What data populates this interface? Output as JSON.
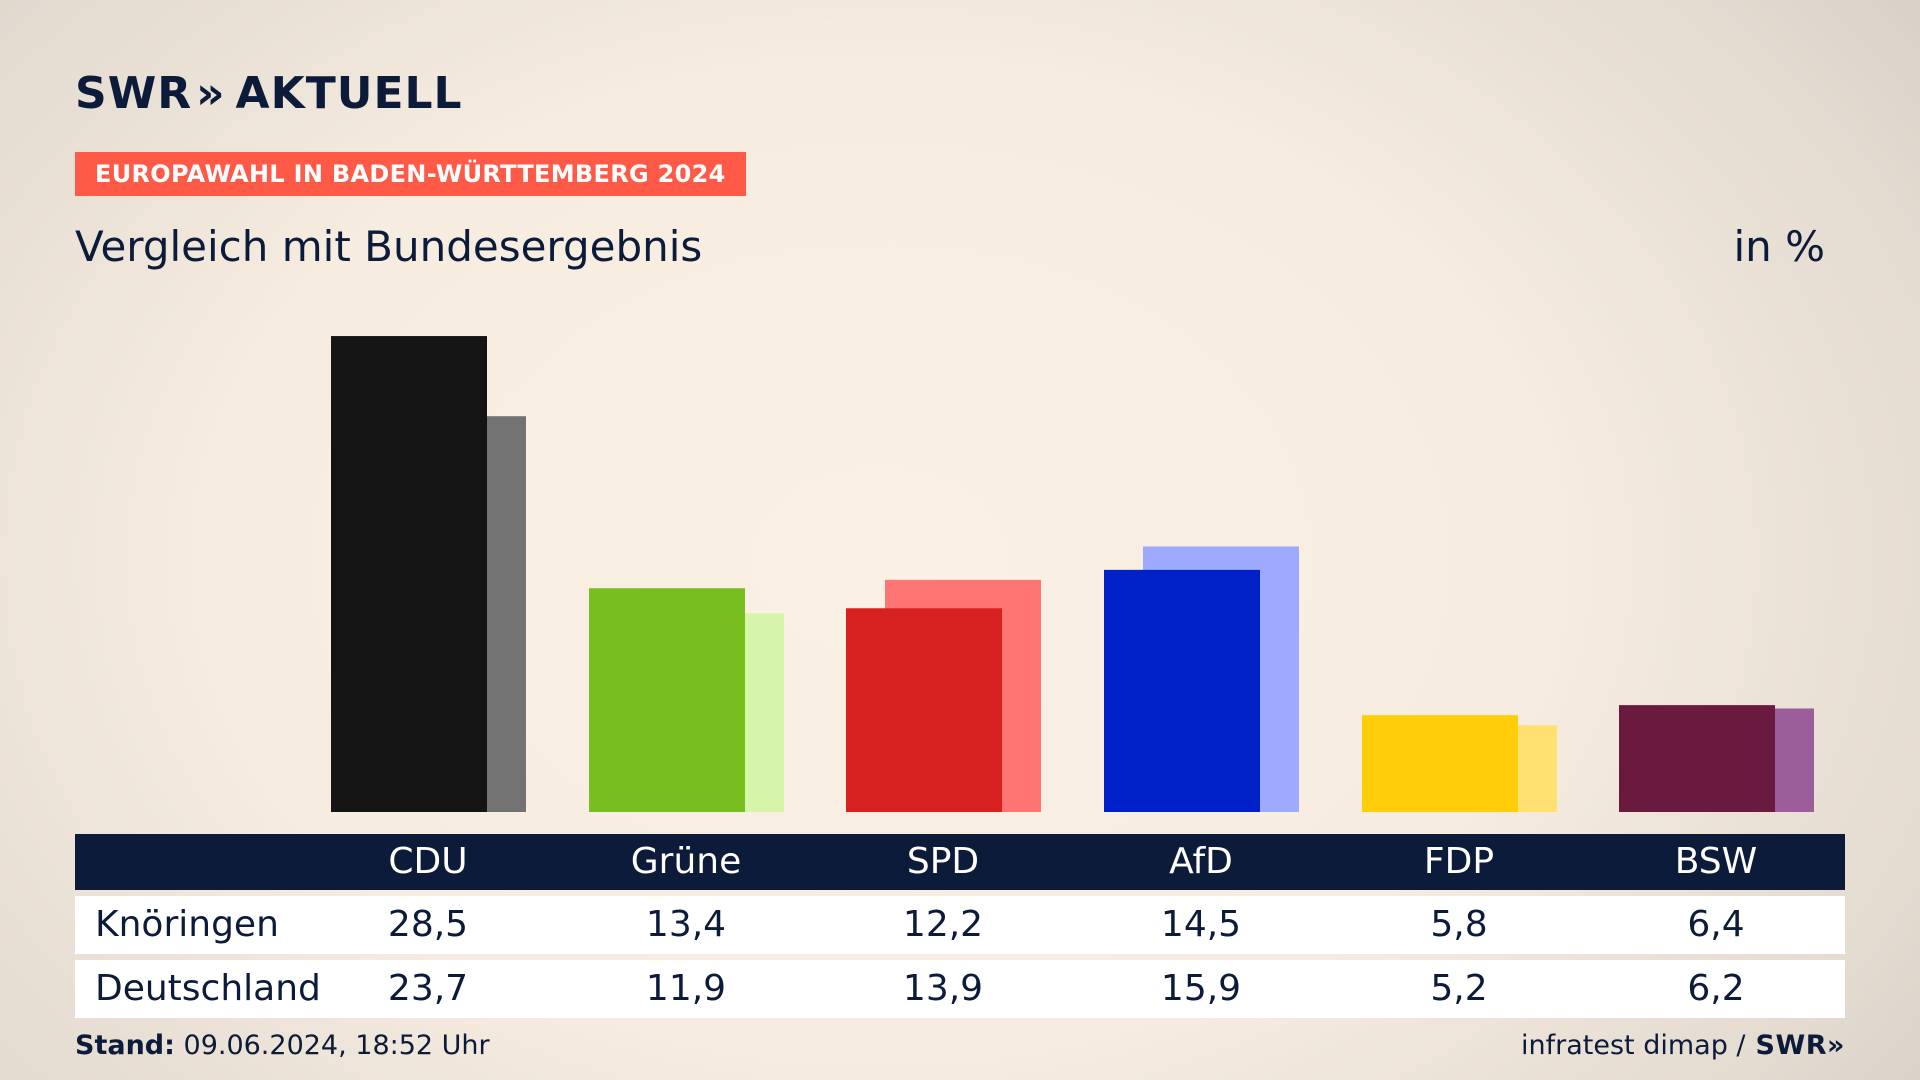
{
  "header": {
    "brand_part1": "SWR",
    "brand_chevron": "»",
    "brand_part2": "AKTUELL",
    "tag": "EUROPAWAHL IN BADEN-WÜRTTEMBERG 2024",
    "subtitle": "Vergleich mit Bundesergebnis",
    "unit": "in %"
  },
  "chart_data": {
    "type": "bar",
    "categories": [
      "CDU",
      "Grüne",
      "SPD",
      "AfD",
      "FDP",
      "BSW"
    ],
    "series": [
      {
        "name": "Knöringen",
        "values": [
          28.5,
          13.4,
          12.2,
          14.5,
          5.8,
          6.4
        ]
      },
      {
        "name": "Deutschland",
        "values": [
          23.7,
          11.9,
          13.9,
          15.9,
          5.2,
          6.2
        ]
      }
    ],
    "colors": {
      "primary": [
        "#141414",
        "#78be1e",
        "#d72020",
        "#0021c8",
        "#ffcd0a",
        "#6a1a3f"
      ],
      "secondary": [
        "#737373",
        "#d7f5aa",
        "#ff7573",
        "#9eaaff",
        "#ffe172",
        "#9b5e9a"
      ]
    },
    "ylim": [
      0,
      30
    ]
  },
  "table": {
    "headers": [
      "CDU",
      "Grüne",
      "SPD",
      "AfD",
      "FDP",
      "BSW"
    ],
    "rows": [
      {
        "label": "Knöringen",
        "values": [
          "28,5",
          "13,4",
          "12,2",
          "14,5",
          "5,8",
          "6,4"
        ]
      },
      {
        "label": "Deutschland",
        "values": [
          "23,7",
          "11,9",
          "13,9",
          "15,9",
          "5,2",
          "6,2"
        ]
      }
    ]
  },
  "footer": {
    "stand_label": "Stand:",
    "stand_value": "09.06.2024, 18:52 Uhr",
    "source": "infratest dimap /",
    "source_brand": "SWR»"
  }
}
